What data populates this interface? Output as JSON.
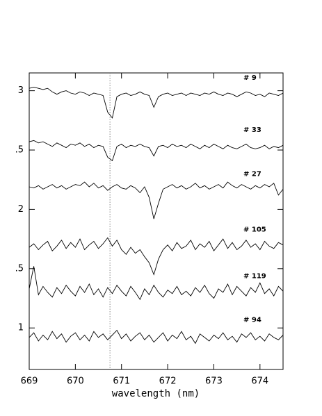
{
  "chart_data": {
    "type": "line",
    "x_label": "wavelength (nm)",
    "x": [
      669.0,
      669.1,
      669.2,
      669.3,
      669.4,
      669.5,
      669.6,
      669.7,
      669.8,
      669.9,
      670.0,
      670.1,
      670.2,
      670.3,
      670.4,
      670.5,
      670.6,
      670.7,
      670.8,
      670.9,
      671.0,
      671.1,
      671.2,
      671.3,
      671.4,
      671.5,
      671.6,
      671.7,
      671.8,
      671.9,
      672.0,
      672.1,
      672.2,
      672.3,
      672.4,
      672.5,
      672.6,
      672.7,
      672.8,
      672.9,
      673.0,
      673.1,
      673.2,
      673.3,
      673.4,
      673.5,
      673.6,
      673.7,
      673.8,
      673.9,
      674.0,
      674.1,
      674.2,
      674.3,
      674.4,
      674.5
    ],
    "series": [
      {
        "name": "# 9",
        "color": "#000000",
        "values": [
          3.02,
          3.03,
          3.02,
          3.01,
          3.02,
          2.99,
          2.97,
          2.99,
          3.0,
          2.98,
          2.97,
          2.99,
          2.98,
          2.96,
          2.98,
          2.97,
          2.96,
          2.82,
          2.77,
          2.95,
          2.97,
          2.98,
          2.96,
          2.97,
          2.99,
          2.97,
          2.96,
          2.86,
          2.95,
          2.97,
          2.98,
          2.96,
          2.97,
          2.98,
          2.96,
          2.98,
          2.97,
          2.96,
          2.98,
          2.97,
          2.99,
          2.97,
          2.96,
          2.98,
          2.97,
          2.95,
          2.97,
          2.99,
          2.98,
          2.96,
          2.97,
          2.95,
          2.98,
          2.97,
          2.96,
          2.98
        ]
      },
      {
        "name": "# 33",
        "color": "#000000",
        "values": [
          2.57,
          2.58,
          2.56,
          2.57,
          2.55,
          2.53,
          2.56,
          2.54,
          2.52,
          2.55,
          2.54,
          2.56,
          2.53,
          2.55,
          2.52,
          2.54,
          2.53,
          2.44,
          2.41,
          2.53,
          2.55,
          2.52,
          2.54,
          2.53,
          2.55,
          2.53,
          2.52,
          2.45,
          2.53,
          2.54,
          2.52,
          2.55,
          2.53,
          2.54,
          2.52,
          2.55,
          2.53,
          2.51,
          2.54,
          2.52,
          2.55,
          2.53,
          2.51,
          2.54,
          2.52,
          2.51,
          2.53,
          2.55,
          2.52,
          2.51,
          2.52,
          2.54,
          2.51,
          2.53,
          2.52,
          2.54
        ]
      },
      {
        "name": "# 27",
        "color": "#000000",
        "values": [
          2.19,
          2.18,
          2.2,
          2.17,
          2.19,
          2.21,
          2.18,
          2.2,
          2.17,
          2.19,
          2.21,
          2.2,
          2.23,
          2.19,
          2.22,
          2.18,
          2.2,
          2.16,
          2.19,
          2.21,
          2.18,
          2.17,
          2.2,
          2.18,
          2.14,
          2.19,
          2.1,
          1.92,
          2.05,
          2.17,
          2.19,
          2.21,
          2.18,
          2.2,
          2.17,
          2.19,
          2.22,
          2.18,
          2.2,
          2.17,
          2.19,
          2.21,
          2.18,
          2.23,
          2.2,
          2.18,
          2.21,
          2.19,
          2.17,
          2.2,
          2.18,
          2.21,
          2.19,
          2.22,
          2.12,
          2.17
        ]
      },
      {
        "name": "# 105",
        "color": "#000000",
        "values": [
          1.68,
          1.71,
          1.66,
          1.7,
          1.73,
          1.65,
          1.69,
          1.74,
          1.67,
          1.72,
          1.68,
          1.75,
          1.66,
          1.7,
          1.73,
          1.67,
          1.71,
          1.76,
          1.69,
          1.74,
          1.66,
          1.62,
          1.68,
          1.63,
          1.66,
          1.6,
          1.55,
          1.45,
          1.58,
          1.66,
          1.7,
          1.65,
          1.72,
          1.67,
          1.69,
          1.74,
          1.66,
          1.71,
          1.68,
          1.73,
          1.65,
          1.7,
          1.75,
          1.67,
          1.72,
          1.66,
          1.69,
          1.74,
          1.68,
          1.71,
          1.66,
          1.73,
          1.69,
          1.67,
          1.72,
          1.7
        ]
      },
      {
        "name": "# 119",
        "color": "#000000",
        "values": [
          1.33,
          1.52,
          1.28,
          1.35,
          1.3,
          1.26,
          1.34,
          1.29,
          1.36,
          1.31,
          1.27,
          1.35,
          1.3,
          1.37,
          1.28,
          1.33,
          1.26,
          1.34,
          1.29,
          1.36,
          1.31,
          1.27,
          1.35,
          1.3,
          1.24,
          1.33,
          1.28,
          1.36,
          1.3,
          1.26,
          1.32,
          1.29,
          1.35,
          1.28,
          1.31,
          1.27,
          1.34,
          1.3,
          1.36,
          1.29,
          1.25,
          1.33,
          1.3,
          1.37,
          1.28,
          1.35,
          1.31,
          1.27,
          1.34,
          1.3,
          1.38,
          1.29,
          1.33,
          1.27,
          1.35,
          1.31
        ]
      },
      {
        "name": "# 94",
        "color": "#000000",
        "values": [
          0.92,
          0.96,
          0.89,
          0.94,
          0.9,
          0.97,
          0.91,
          0.95,
          0.88,
          0.93,
          0.96,
          0.9,
          0.94,
          0.89,
          0.97,
          0.92,
          0.95,
          0.9,
          0.94,
          0.98,
          0.91,
          0.95,
          0.89,
          0.93,
          0.96,
          0.9,
          0.94,
          0.88,
          0.92,
          0.96,
          0.89,
          0.94,
          0.91,
          0.97,
          0.9,
          0.93,
          0.87,
          0.95,
          0.92,
          0.89,
          0.94,
          0.91,
          0.96,
          0.9,
          0.93,
          0.88,
          0.95,
          0.92,
          0.96,
          0.9,
          0.93,
          0.89,
          0.95,
          0.92,
          0.9,
          0.94
        ]
      }
    ],
    "marker_x": 670.75,
    "xlim": [
      669,
      674.5
    ],
    "xticks": [
      669,
      670,
      671,
      672,
      673,
      674
    ],
    "ylim": [
      0.65,
      3.15
    ],
    "yticks": [
      1,
      {
        "value": 1.5,
        "label": ".5"
      },
      2,
      {
        "value": 2.5,
        "label": ".5"
      },
      3
    ]
  }
}
